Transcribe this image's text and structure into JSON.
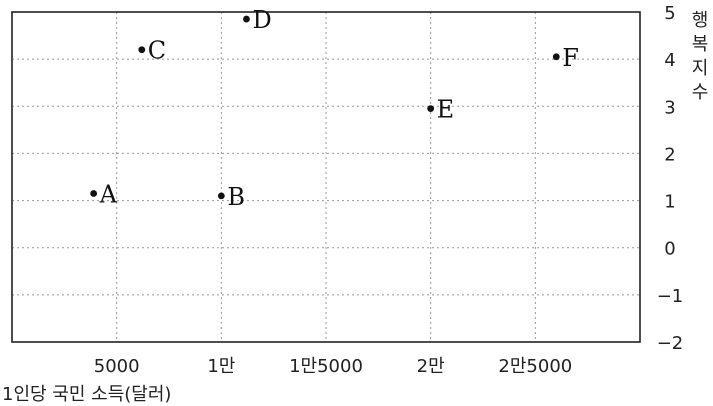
{
  "chart_data": {
    "type": "scatter",
    "title": "",
    "xlabel": "1인당 국민 소득(달러)",
    "ylabel": "행복지수",
    "xlim": [
      0,
      30000
    ],
    "ylim": [
      -2,
      5
    ],
    "x_ticks": [
      5000,
      10000,
      15000,
      20000,
      25000
    ],
    "x_tick_labels": [
      "5000",
      "1만",
      "1만5000",
      "2만",
      "2만5000"
    ],
    "y_ticks": [
      5,
      4,
      3,
      2,
      1,
      0,
      -1,
      -2
    ],
    "y_tick_labels": [
      "5",
      "4",
      "3",
      "2",
      "1",
      "0",
      "−1",
      "−2"
    ],
    "grid": true,
    "points": [
      {
        "label": "A",
        "x": 3900,
        "y": 1.15
      },
      {
        "label": "B",
        "x": 10000,
        "y": 1.1
      },
      {
        "label": "C",
        "x": 6200,
        "y": 4.2
      },
      {
        "label": "D",
        "x": 11200,
        "y": 4.85
      },
      {
        "label": "E",
        "x": 20000,
        "y": 2.95
      },
      {
        "label": "F",
        "x": 26000,
        "y": 4.05
      }
    ]
  }
}
